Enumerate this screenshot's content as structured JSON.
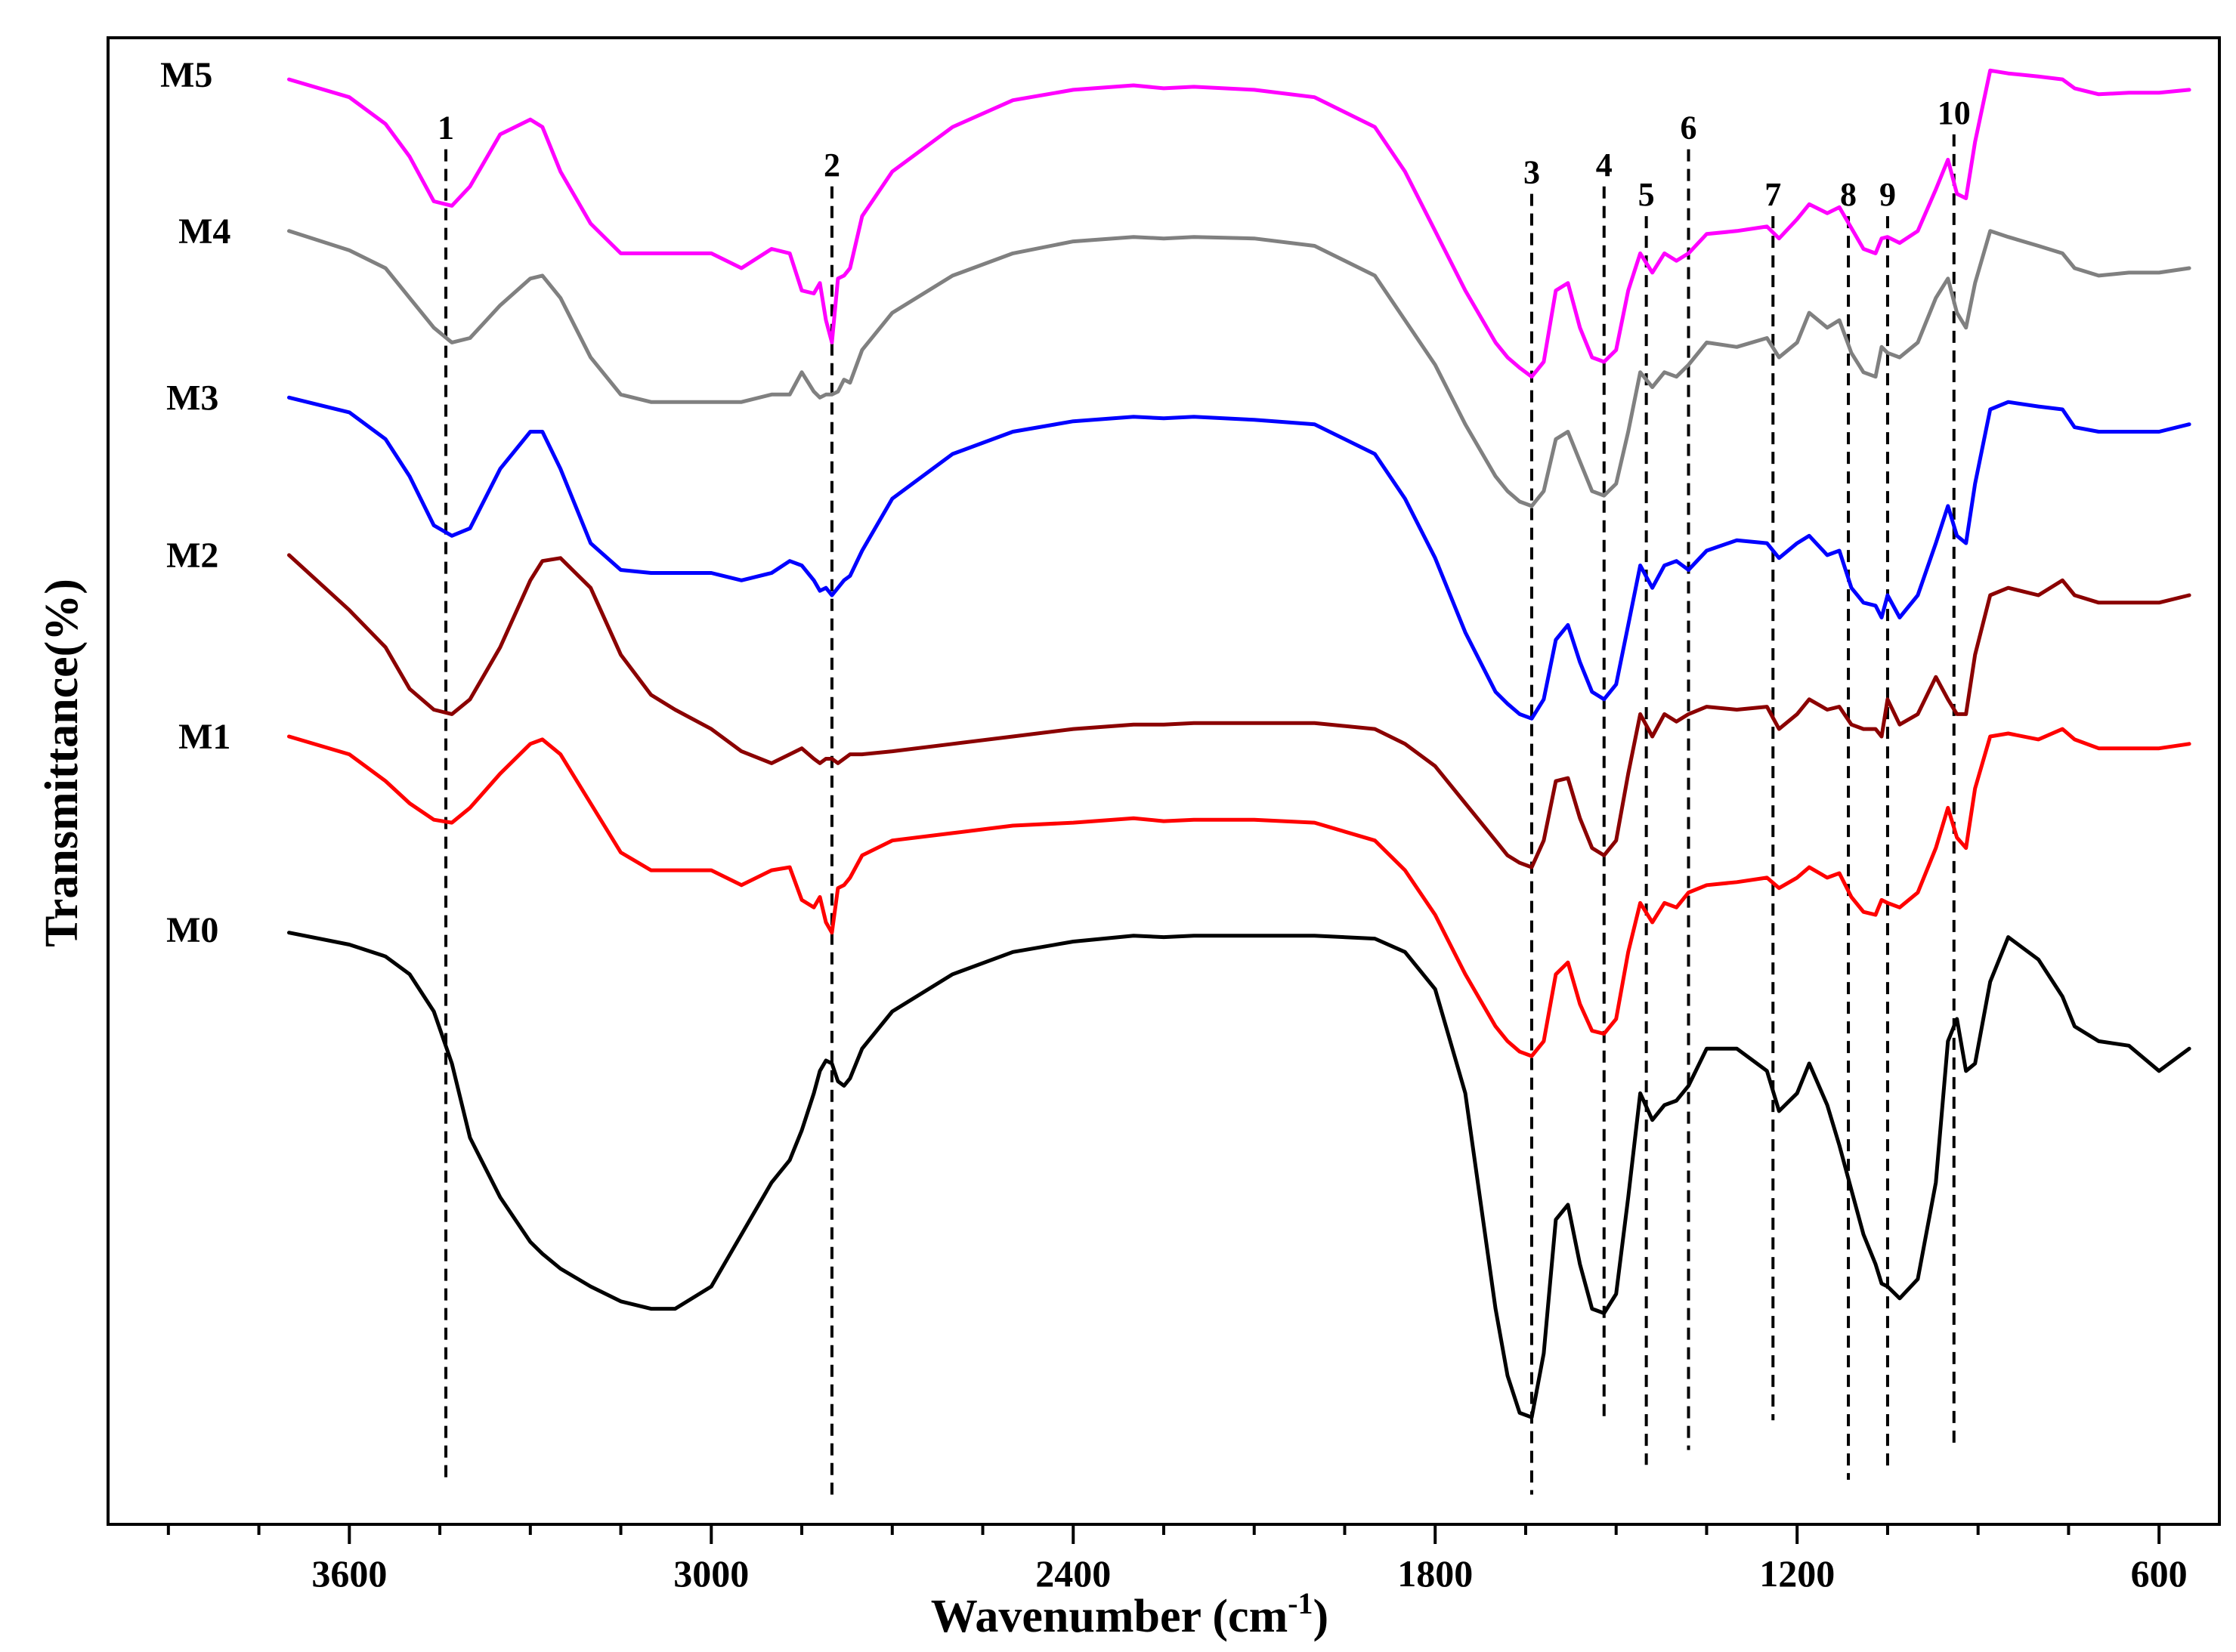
{
  "chart_data": {
    "type": "line",
    "title": "",
    "xlabel": "Wavenumber (cm",
    "xlabel_superscript": "-1",
    "xlabel_close": ")",
    "ylabel": "Transmittance(%)",
    "xlim": [
      4000,
      500
    ],
    "x_reversed": true,
    "x_ticks": [
      3600,
      3000,
      2400,
      1800,
      1200,
      600
    ],
    "x_tick_labels": [
      "3600",
      "3000",
      "2400",
      "1800",
      "1200",
      "600"
    ],
    "ylim": [
      0,
      10
    ],
    "y_ticks_visible": false,
    "grid": false,
    "peak_markers": [
      {
        "label": "1",
        "x": 3440,
        "y_top": 9.25,
        "y_bottom": 0.3
      },
      {
        "label": "2",
        "x": 2800,
        "y_top": 9.0,
        "y_bottom": 0.2
      },
      {
        "label": "3",
        "x": 1640,
        "y_top": 8.95,
        "y_bottom": 0.2
      },
      {
        "label": "4",
        "x": 1520,
        "y_top": 9.0,
        "y_bottom": 0.7
      },
      {
        "label": "5",
        "x": 1450,
        "y_top": 8.8,
        "y_bottom": 0.4
      },
      {
        "label": "6",
        "x": 1380,
        "y_top": 9.25,
        "y_bottom": 0.5
      },
      {
        "label": "7",
        "x": 1240,
        "y_top": 8.8,
        "y_bottom": 0.7
      },
      {
        "label": "8",
        "x": 1115,
        "y_top": 8.8,
        "y_bottom": 0.3
      },
      {
        "label": "9",
        "x": 1050,
        "y_top": 8.8,
        "y_bottom": 0.35
      },
      {
        "label": "10",
        "x": 940,
        "y_top": 9.35,
        "y_bottom": 0.5
      }
    ],
    "series": [
      {
        "name": "M5",
        "color": "#ff00ff",
        "label_x": 3870,
        "label_y": 9.75,
        "x": [
          3700,
          3600,
          3540,
          3500,
          3460,
          3430,
          3400,
          3350,
          3300,
          3280,
          3250,
          3200,
          3150,
          3100,
          3060,
          3000,
          2950,
          2900,
          2870,
          2850,
          2830,
          2820,
          2810,
          2800,
          2790,
          2780,
          2770,
          2750,
          2700,
          2600,
          2500,
          2400,
          2300,
          2250,
          2200,
          2100,
          2000,
          1900,
          1850,
          1800,
          1750,
          1700,
          1680,
          1660,
          1640,
          1620,
          1600,
          1580,
          1560,
          1540,
          1520,
          1500,
          1480,
          1460,
          1440,
          1420,
          1400,
          1380,
          1350,
          1300,
          1250,
          1230,
          1200,
          1180,
          1150,
          1130,
          1110,
          1090,
          1070,
          1060,
          1050,
          1030,
          1000,
          970,
          950,
          935,
          920,
          905,
          880,
          850,
          800,
          760,
          740,
          700,
          650,
          600,
          550
        ],
        "y": [
          9.72,
          9.6,
          9.42,
          9.2,
          8.9,
          8.87,
          9.0,
          9.35,
          9.45,
          9.4,
          9.1,
          8.75,
          8.55,
          8.55,
          8.55,
          8.55,
          8.45,
          8.58,
          8.55,
          8.3,
          8.28,
          8.35,
          8.1,
          7.95,
          8.38,
          8.4,
          8.45,
          8.8,
          9.1,
          9.4,
          9.58,
          9.65,
          9.68,
          9.66,
          9.67,
          9.65,
          9.6,
          9.4,
          9.1,
          8.7,
          8.3,
          7.95,
          7.85,
          7.78,
          7.72,
          7.82,
          8.3,
          8.35,
          8.05,
          7.85,
          7.82,
          7.9,
          8.3,
          8.55,
          8.42,
          8.55,
          8.5,
          8.55,
          8.68,
          8.7,
          8.73,
          8.65,
          8.78,
          8.88,
          8.82,
          8.86,
          8.72,
          8.58,
          8.55,
          8.65,
          8.66,
          8.62,
          8.7,
          8.98,
          9.18,
          8.95,
          8.92,
          9.3,
          9.78,
          9.76,
          9.74,
          9.72,
          9.66,
          9.62,
          9.63,
          9.63,
          9.65
        ]
      },
      {
        "name": "M4",
        "color": "#808080",
        "label_x": 3840,
        "label_y": 8.7,
        "x": [
          3700,
          3600,
          3540,
          3500,
          3460,
          3430,
          3400,
          3350,
          3300,
          3280,
          3250,
          3200,
          3150,
          3100,
          3060,
          3000,
          2950,
          2900,
          2870,
          2850,
          2830,
          2820,
          2810,
          2800,
          2790,
          2780,
          2770,
          2750,
          2700,
          2600,
          2500,
          2400,
          2300,
          2250,
          2200,
          2100,
          2000,
          1900,
          1850,
          1800,
          1750,
          1700,
          1680,
          1660,
          1640,
          1620,
          1600,
          1580,
          1560,
          1540,
          1520,
          1500,
          1480,
          1460,
          1440,
          1420,
          1400,
          1380,
          1350,
          1300,
          1250,
          1230,
          1200,
          1180,
          1150,
          1130,
          1110,
          1090,
          1070,
          1060,
          1050,
          1030,
          1000,
          970,
          950,
          935,
          920,
          905,
          880,
          850,
          800,
          760,
          740,
          700,
          650,
          600,
          550
        ],
        "y": [
          8.7,
          8.57,
          8.45,
          8.25,
          8.05,
          7.95,
          7.98,
          8.2,
          8.38,
          8.4,
          8.25,
          7.85,
          7.6,
          7.55,
          7.55,
          7.55,
          7.55,
          7.6,
          7.6,
          7.75,
          7.62,
          7.58,
          7.6,
          7.6,
          7.62,
          7.7,
          7.68,
          7.9,
          8.15,
          8.4,
          8.55,
          8.63,
          8.66,
          8.65,
          8.66,
          8.65,
          8.6,
          8.4,
          8.1,
          7.8,
          7.4,
          7.05,
          6.95,
          6.88,
          6.85,
          6.95,
          7.3,
          7.35,
          7.15,
          6.95,
          6.92,
          7.0,
          7.35,
          7.75,
          7.65,
          7.75,
          7.72,
          7.8,
          7.95,
          7.92,
          7.98,
          7.85,
          7.95,
          8.15,
          8.05,
          8.1,
          7.88,
          7.75,
          7.72,
          7.92,
          7.88,
          7.85,
          7.95,
          8.25,
          8.38,
          8.15,
          8.05,
          8.35,
          8.7,
          8.66,
          8.6,
          8.55,
          8.45,
          8.4,
          8.42,
          8.42,
          8.45
        ]
      },
      {
        "name": "M3",
        "color": "#0000ff",
        "label_x": 3860,
        "label_y": 7.58,
        "x": [
          3700,
          3600,
          3540,
          3500,
          3460,
          3430,
          3400,
          3350,
          3300,
          3280,
          3250,
          3200,
          3150,
          3100,
          3060,
          3000,
          2950,
          2900,
          2870,
          2850,
          2830,
          2820,
          2810,
          2800,
          2790,
          2780,
          2770,
          2750,
          2700,
          2600,
          2500,
          2400,
          2300,
          2250,
          2200,
          2100,
          2000,
          1900,
          1850,
          1800,
          1750,
          1700,
          1680,
          1660,
          1640,
          1620,
          1600,
          1580,
          1560,
          1540,
          1520,
          1500,
          1480,
          1460,
          1440,
          1420,
          1400,
          1380,
          1350,
          1300,
          1250,
          1230,
          1200,
          1180,
          1150,
          1130,
          1110,
          1090,
          1070,
          1060,
          1050,
          1030,
          1000,
          970,
          950,
          935,
          920,
          905,
          880,
          850,
          800,
          760,
          740,
          700,
          650,
          600,
          550
        ],
        "y": [
          7.58,
          7.48,
          7.3,
          7.05,
          6.72,
          6.65,
          6.7,
          7.1,
          7.35,
          7.35,
          7.1,
          6.6,
          6.42,
          6.4,
          6.4,
          6.4,
          6.35,
          6.4,
          6.48,
          6.45,
          6.35,
          6.28,
          6.3,
          6.25,
          6.3,
          6.35,
          6.38,
          6.55,
          6.9,
          7.2,
          7.35,
          7.42,
          7.45,
          7.44,
          7.45,
          7.43,
          7.4,
          7.2,
          6.9,
          6.5,
          6.0,
          5.6,
          5.52,
          5.45,
          5.42,
          5.55,
          5.95,
          6.05,
          5.8,
          5.6,
          5.55,
          5.65,
          6.05,
          6.45,
          6.3,
          6.45,
          6.48,
          6.42,
          6.55,
          6.62,
          6.6,
          6.5,
          6.6,
          6.65,
          6.52,
          6.55,
          6.3,
          6.2,
          6.18,
          6.1,
          6.25,
          6.1,
          6.25,
          6.6,
          6.85,
          6.65,
          6.6,
          7.0,
          7.5,
          7.55,
          7.52,
          7.5,
          7.38,
          7.35,
          7.35,
          7.35,
          7.4
        ]
      },
      {
        "name": "M2",
        "color": "#8b0000",
        "label_x": 3860,
        "label_y": 6.52,
        "x": [
          3700,
          3600,
          3540,
          3500,
          3460,
          3430,
          3400,
          3350,
          3300,
          3280,
          3250,
          3200,
          3150,
          3100,
          3060,
          3000,
          2950,
          2900,
          2870,
          2850,
          2830,
          2820,
          2810,
          2800,
          2790,
          2780,
          2770,
          2750,
          2700,
          2600,
          2500,
          2400,
          2300,
          2250,
          2200,
          2100,
          2000,
          1900,
          1850,
          1800,
          1750,
          1700,
          1680,
          1660,
          1640,
          1620,
          1600,
          1580,
          1560,
          1540,
          1520,
          1500,
          1480,
          1460,
          1440,
          1420,
          1400,
          1380,
          1350,
          1300,
          1250,
          1230,
          1200,
          1180,
          1150,
          1130,
          1110,
          1090,
          1070,
          1060,
          1050,
          1030,
          1000,
          970,
          950,
          935,
          920,
          905,
          880,
          850,
          800,
          760,
          740,
          700,
          650,
          600,
          550
        ],
        "y": [
          6.52,
          6.15,
          5.9,
          5.62,
          5.48,
          5.45,
          5.55,
          5.9,
          6.35,
          6.48,
          6.5,
          6.3,
          5.85,
          5.58,
          5.48,
          5.35,
          5.2,
          5.12,
          5.18,
          5.22,
          5.15,
          5.12,
          5.15,
          5.15,
          5.12,
          5.15,
          5.18,
          5.18,
          5.2,
          5.25,
          5.3,
          5.35,
          5.38,
          5.38,
          5.39,
          5.39,
          5.39,
          5.35,
          5.25,
          5.1,
          4.85,
          4.6,
          4.5,
          4.45,
          4.42,
          4.6,
          5.0,
          5.02,
          4.75,
          4.55,
          4.5,
          4.6,
          5.05,
          5.45,
          5.3,
          5.45,
          5.4,
          5.45,
          5.5,
          5.48,
          5.5,
          5.35,
          5.45,
          5.55,
          5.48,
          5.5,
          5.38,
          5.35,
          5.35,
          5.3,
          5.55,
          5.38,
          5.45,
          5.7,
          5.55,
          5.45,
          5.45,
          5.85,
          6.25,
          6.3,
          6.25,
          6.35,
          6.25,
          6.2,
          6.2,
          6.2,
          6.25
        ]
      },
      {
        "name": "M1",
        "color": "#ff0000",
        "label_x": 3840,
        "label_y": 5.3,
        "x": [
          3700,
          3600,
          3540,
          3500,
          3460,
          3430,
          3400,
          3350,
          3300,
          3280,
          3250,
          3200,
          3150,
          3100,
          3060,
          3000,
          2950,
          2900,
          2870,
          2850,
          2830,
          2820,
          2810,
          2800,
          2790,
          2780,
          2770,
          2750,
          2700,
          2600,
          2500,
          2400,
          2300,
          2250,
          2200,
          2100,
          2000,
          1900,
          1850,
          1800,
          1750,
          1700,
          1680,
          1660,
          1640,
          1620,
          1600,
          1580,
          1560,
          1540,
          1520,
          1500,
          1480,
          1460,
          1440,
          1420,
          1400,
          1380,
          1350,
          1300,
          1250,
          1230,
          1200,
          1180,
          1150,
          1130,
          1110,
          1090,
          1070,
          1060,
          1050,
          1030,
          1000,
          970,
          950,
          935,
          920,
          905,
          880,
          850,
          800,
          760,
          740,
          700,
          650,
          600,
          550
        ],
        "y": [
          5.3,
          5.18,
          5.0,
          4.85,
          4.74,
          4.72,
          4.82,
          5.05,
          5.25,
          5.28,
          5.18,
          4.85,
          4.52,
          4.4,
          4.4,
          4.4,
          4.3,
          4.4,
          4.42,
          4.2,
          4.15,
          4.22,
          4.05,
          3.98,
          4.28,
          4.3,
          4.35,
          4.5,
          4.6,
          4.65,
          4.7,
          4.72,
          4.75,
          4.73,
          4.74,
          4.74,
          4.72,
          4.6,
          4.4,
          4.1,
          3.7,
          3.35,
          3.25,
          3.18,
          3.15,
          3.25,
          3.7,
          3.78,
          3.5,
          3.32,
          3.3,
          3.4,
          3.85,
          4.18,
          4.05,
          4.18,
          4.15,
          4.25,
          4.3,
          4.32,
          4.35,
          4.28,
          4.35,
          4.42,
          4.35,
          4.38,
          4.22,
          4.12,
          4.1,
          4.2,
          4.18,
          4.15,
          4.25,
          4.55,
          4.82,
          4.62,
          4.55,
          4.95,
          5.3,
          5.32,
          5.28,
          5.35,
          5.28,
          5.22,
          5.22,
          5.22,
          5.25
        ]
      },
      {
        "name": "M0",
        "color": "#000000",
        "label_x": 3860,
        "label_y": 4.0,
        "x": [
          3700,
          3600,
          3540,
          3500,
          3460,
          3430,
          3400,
          3350,
          3300,
          3280,
          3250,
          3200,
          3150,
          3100,
          3060,
          3000,
          2950,
          2900,
          2870,
          2850,
          2830,
          2820,
          2810,
          2800,
          2790,
          2780,
          2770,
          2750,
          2700,
          2600,
          2500,
          2400,
          2300,
          2250,
          2200,
          2100,
          2000,
          1900,
          1850,
          1800,
          1750,
          1700,
          1680,
          1660,
          1640,
          1620,
          1600,
          1580,
          1560,
          1540,
          1520,
          1500,
          1480,
          1460,
          1440,
          1420,
          1400,
          1380,
          1350,
          1300,
          1250,
          1230,
          1200,
          1180,
          1150,
          1130,
          1110,
          1090,
          1070,
          1060,
          1050,
          1030,
          1000,
          970,
          950,
          935,
          920,
          905,
          880,
          850,
          800,
          760,
          740,
          700,
          650,
          600,
          550
        ],
        "y": [
          3.98,
          3.9,
          3.82,
          3.7,
          3.45,
          3.1,
          2.6,
          2.2,
          1.9,
          1.82,
          1.72,
          1.6,
          1.5,
          1.45,
          1.45,
          1.6,
          1.95,
          2.3,
          2.45,
          2.65,
          2.9,
          3.05,
          3.12,
          3.1,
          2.98,
          2.95,
          3.0,
          3.2,
          3.45,
          3.7,
          3.85,
          3.92,
          3.96,
          3.95,
          3.96,
          3.96,
          3.96,
          3.94,
          3.85,
          3.6,
          2.9,
          1.45,
          1.0,
          0.75,
          0.72,
          1.15,
          2.05,
          2.15,
          1.75,
          1.45,
          1.42,
          1.55,
          2.2,
          2.9,
          2.72,
          2.82,
          2.85,
          2.95,
          3.2,
          3.2,
          3.05,
          2.78,
          2.9,
          3.1,
          2.82,
          2.55,
          2.25,
          1.95,
          1.75,
          1.62,
          1.6,
          1.52,
          1.65,
          2.3,
          3.25,
          3.4,
          3.05,
          3.1,
          3.65,
          3.95,
          3.8,
          3.55,
          3.35,
          3.25,
          3.22,
          3.05,
          3.2
        ]
      }
    ]
  }
}
